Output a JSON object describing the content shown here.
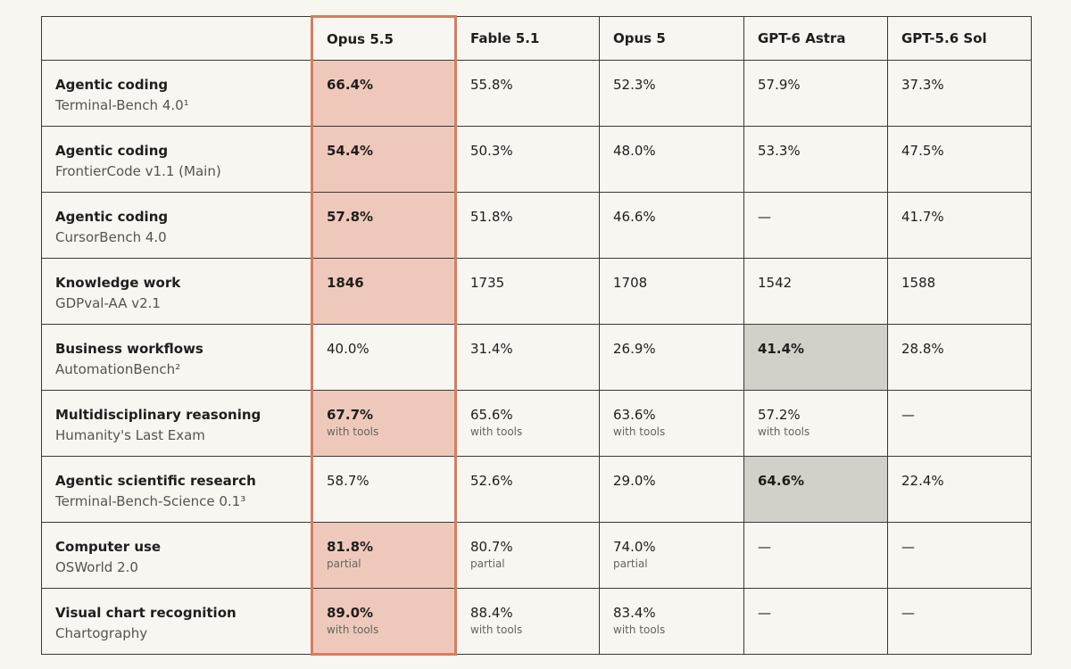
{
  "colors": {
    "highlight_column_fill": "#eec9bb",
    "highlight_column_border": "#d97c5c",
    "best_other_fill": "#d2d0c8",
    "background": "#f8f6f1"
  },
  "table": {
    "headers": [
      "",
      "Opus 5.5",
      "Fable 5.1",
      "Opus 5",
      "GPT-6 Astra",
      "GPT-5.6 Sol"
    ],
    "rows": [
      {
        "task": "Agentic coding",
        "benchmark": "Terminal-Bench 4.0¹",
        "cells": [
          {
            "value": "66.4%",
            "note": "",
            "bold": true,
            "hl": "main"
          },
          {
            "value": "55.8%",
            "note": "",
            "bold": false,
            "hl": ""
          },
          {
            "value": "52.3%",
            "note": "",
            "bold": false,
            "hl": ""
          },
          {
            "value": "57.9%",
            "note": "",
            "bold": false,
            "hl": ""
          },
          {
            "value": "37.3%",
            "note": "",
            "bold": false,
            "hl": ""
          }
        ]
      },
      {
        "task": "Agentic coding",
        "benchmark": "FrontierCode v1.1 (Main)",
        "cells": [
          {
            "value": "54.4%",
            "note": "",
            "bold": true,
            "hl": "main"
          },
          {
            "value": "50.3%",
            "note": "",
            "bold": false,
            "hl": ""
          },
          {
            "value": "48.0%",
            "note": "",
            "bold": false,
            "hl": ""
          },
          {
            "value": "53.3%",
            "note": "",
            "bold": false,
            "hl": ""
          },
          {
            "value": "47.5%",
            "note": "",
            "bold": false,
            "hl": ""
          }
        ]
      },
      {
        "task": "Agentic coding",
        "benchmark": "CursorBench 4.0",
        "cells": [
          {
            "value": "57.8%",
            "note": "",
            "bold": true,
            "hl": "main"
          },
          {
            "value": "51.8%",
            "note": "",
            "bold": false,
            "hl": ""
          },
          {
            "value": "46.6%",
            "note": "",
            "bold": false,
            "hl": ""
          },
          {
            "value": "—",
            "note": "",
            "bold": false,
            "hl": ""
          },
          {
            "value": "41.7%",
            "note": "",
            "bold": false,
            "hl": ""
          }
        ]
      },
      {
        "task": "Knowledge work",
        "benchmark": "GDPval-AA v2.1",
        "cells": [
          {
            "value": "1846",
            "note": "",
            "bold": true,
            "hl": "main"
          },
          {
            "value": "1735",
            "note": "",
            "bold": false,
            "hl": ""
          },
          {
            "value": "1708",
            "note": "",
            "bold": false,
            "hl": ""
          },
          {
            "value": "1542",
            "note": "",
            "bold": false,
            "hl": ""
          },
          {
            "value": "1588",
            "note": "",
            "bold": false,
            "hl": ""
          }
        ]
      },
      {
        "task": "Business workflows",
        "benchmark": "AutomationBench²",
        "cells": [
          {
            "value": "40.0%",
            "note": "",
            "bold": false,
            "hl": ""
          },
          {
            "value": "31.4%",
            "note": "",
            "bold": false,
            "hl": ""
          },
          {
            "value": "26.9%",
            "note": "",
            "bold": false,
            "hl": ""
          },
          {
            "value": "41.4%",
            "note": "",
            "bold": true,
            "hl": "best"
          },
          {
            "value": "28.8%",
            "note": "",
            "bold": false,
            "hl": ""
          }
        ]
      },
      {
        "task": "Multidisciplinary reasoning",
        "benchmark": "Humanity's Last Exam",
        "cells": [
          {
            "value": "67.7%",
            "note": "with tools",
            "bold": true,
            "hl": "main"
          },
          {
            "value": "65.6%",
            "note": "with tools",
            "bold": false,
            "hl": ""
          },
          {
            "value": "63.6%",
            "note": "with tools",
            "bold": false,
            "hl": ""
          },
          {
            "value": "57.2%",
            "note": "with tools",
            "bold": false,
            "hl": ""
          },
          {
            "value": "—",
            "note": "",
            "bold": false,
            "hl": ""
          }
        ]
      },
      {
        "task": "Agentic scientific research",
        "benchmark": "Terminal-Bench-Science 0.1³",
        "cells": [
          {
            "value": "58.7%",
            "note": "",
            "bold": false,
            "hl": ""
          },
          {
            "value": "52.6%",
            "note": "",
            "bold": false,
            "hl": ""
          },
          {
            "value": "29.0%",
            "note": "",
            "bold": false,
            "hl": ""
          },
          {
            "value": "64.6%",
            "note": "",
            "bold": true,
            "hl": "best"
          },
          {
            "value": "22.4%",
            "note": "",
            "bold": false,
            "hl": ""
          }
        ]
      },
      {
        "task": "Computer use",
        "benchmark": "OSWorld 2.0",
        "cells": [
          {
            "value": "81.8%",
            "note": "partial",
            "bold": true,
            "hl": "main"
          },
          {
            "value": "80.7%",
            "note": "partial",
            "bold": false,
            "hl": ""
          },
          {
            "value": "74.0%",
            "note": "partial",
            "bold": false,
            "hl": ""
          },
          {
            "value": "—",
            "note": "",
            "bold": false,
            "hl": ""
          },
          {
            "value": "—",
            "note": "",
            "bold": false,
            "hl": ""
          }
        ]
      },
      {
        "task": "Visual chart recognition",
        "benchmark": "Chartography",
        "cells": [
          {
            "value": "89.0%",
            "note": "with tools",
            "bold": true,
            "hl": "main"
          },
          {
            "value": "88.4%",
            "note": "with tools",
            "bold": false,
            "hl": ""
          },
          {
            "value": "83.4%",
            "note": "with tools",
            "bold": false,
            "hl": ""
          },
          {
            "value": "—",
            "note": "",
            "bold": false,
            "hl": ""
          },
          {
            "value": "—",
            "note": "",
            "bold": false,
            "hl": ""
          }
        ]
      }
    ]
  }
}
